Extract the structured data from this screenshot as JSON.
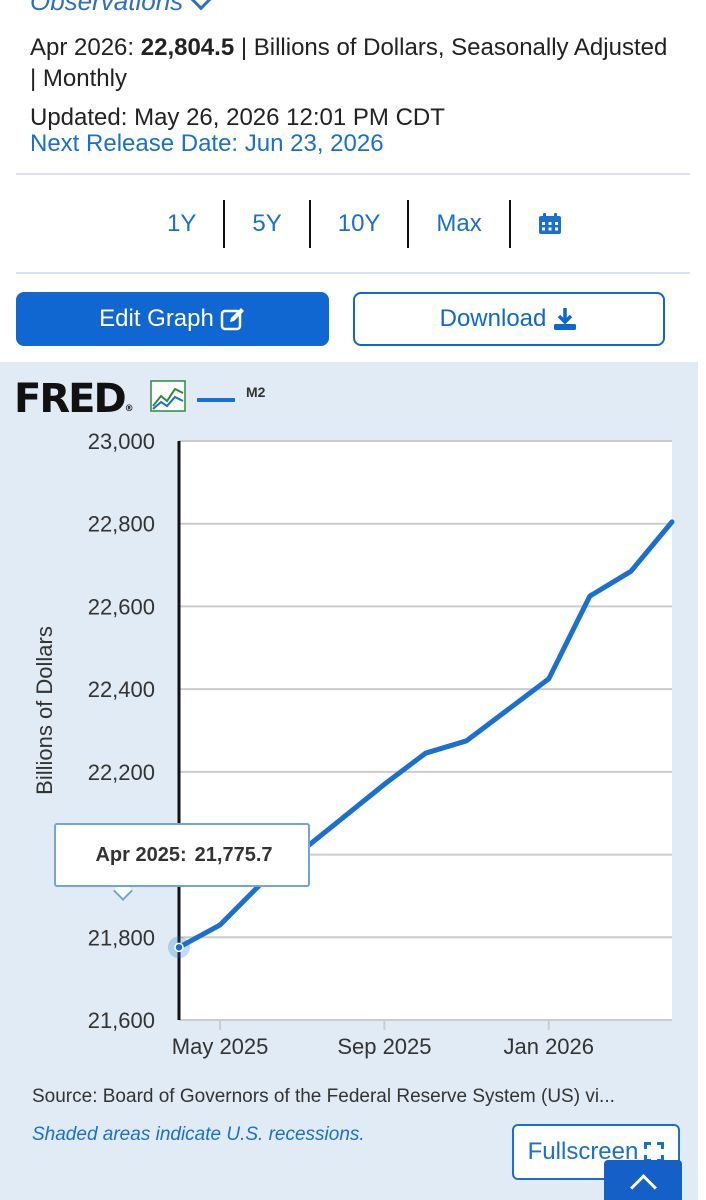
{
  "observations": {
    "header": "Observations",
    "period": "Apr 2026:",
    "value": "22,804.5",
    "units": "| Billions of Dollars, Seasonally Adjusted | Monthly",
    "updated": "Updated: May 26, 2026 12:01 PM CDT",
    "next_release": "Next Release Date: Jun 23, 2026"
  },
  "ranges": [
    "1Y",
    "5Y",
    "10Y",
    "Max"
  ],
  "buttons": {
    "edit_graph": "Edit Graph",
    "download": "Download",
    "fullscreen": "Fullscreen"
  },
  "logo": "FRED",
  "legend": {
    "series": "M2",
    "color": "#1a6fd1"
  },
  "tooltip": {
    "label": "Apr 2025:",
    "value": "21,775.7"
  },
  "source": "Source: Board of Governors of the Federal Reserve System (US) vi...",
  "recession_note": "Shaded areas indicate U.S. recessions.",
  "chart_data": {
    "type": "line",
    "ylabel": "Billions of Dollars",
    "ylim": [
      21600,
      23000
    ],
    "yticks": [
      21600,
      21800,
      22000,
      22200,
      22400,
      22600,
      22800,
      23000
    ],
    "ytick_labels": [
      "21,600",
      "21,800",
      "22,000",
      "22,200",
      "22,400",
      "22,600",
      "22,800",
      "23,000"
    ],
    "x": [
      "Apr 2025",
      "May 2025",
      "Jun 2025",
      "Jul 2025",
      "Aug 2025",
      "Sep 2025",
      "Oct 2025",
      "Nov 2025",
      "Dec 2025",
      "Jan 2026",
      "Feb 2026",
      "Mar 2026",
      "Apr 2026"
    ],
    "xticks": [
      "May 2025",
      "Sep 2025",
      "Jan 2026"
    ],
    "series": [
      {
        "name": "M2",
        "values": [
          21775.7,
          21830,
          21930,
          22010,
          22090,
          22170,
          22245,
          22275,
          22350,
          22425,
          22625,
          22685,
          22804.5
        ]
      }
    ],
    "grid": true,
    "highlight_index": 0
  }
}
